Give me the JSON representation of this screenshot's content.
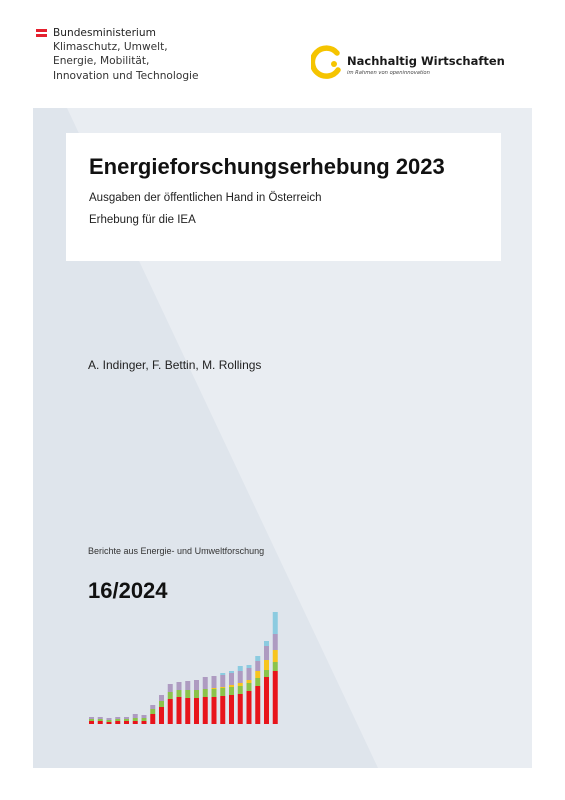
{
  "header": {
    "ministry_lines": [
      "Bundesministerium",
      "Klimaschutz, Umwelt,",
      "Energie, Mobilität,",
      "Innovation und Technologie"
    ],
    "flag_colors": [
      "#e5202e",
      "#ffffff",
      "#e5202e"
    ],
    "partner_logo": {
      "title": "Nachhaltig Wirtschaften",
      "subtitle": "im Rahmen von openinnovation",
      "accent": "#f5c400"
    }
  },
  "cover": {
    "title": "Energieforschungserhebung 2023",
    "subtitle_1": "Ausgaben der öffentlichen Hand in Österreich",
    "subtitle_2": "Erhebung für die IEA",
    "authors": "A. Indinger, F. Bettin, M. Rollings",
    "series": "Berichte aus Energie- und Umweltforschung",
    "report_number": "16/2024",
    "background_color": "#dfe5ec"
  },
  "chart_data": {
    "type": "bar",
    "stacked": true,
    "colors": [
      "#e8141b",
      "#8bc34a",
      "#f7c51e",
      "#ae9bc1",
      "#8ccbe0"
    ],
    "series": [
      {
        "values": [
          3,
          3,
          2,
          3,
          3,
          3,
          3,
          10,
          17,
          25,
          27,
          26,
          26,
          27,
          27,
          28,
          29,
          30,
          33,
          38,
          47,
          53
        ]
      },
      {
        "values": [
          2,
          2,
          2,
          2,
          2,
          3,
          3,
          5,
          6,
          7,
          7,
          8,
          8,
          8,
          8,
          8,
          8,
          8,
          8,
          8,
          7,
          9
        ]
      },
      {
        "values": [
          0,
          0,
          0,
          0,
          0,
          0,
          0,
          0,
          0,
          0,
          0,
          0,
          0,
          0,
          1,
          1,
          2,
          3,
          3,
          7,
          10,
          12
        ]
      },
      {
        "values": [
          2,
          2,
          2,
          2,
          2,
          4,
          3,
          4,
          6,
          8,
          8,
          9,
          10,
          12,
          12,
          12,
          12,
          12,
          12,
          10,
          14,
          16
        ]
      },
      {
        "values": [
          0,
          0,
          0,
          0,
          0,
          0,
          0,
          0,
          0,
          0,
          0,
          0,
          0,
          0,
          0,
          2,
          2,
          5,
          3,
          5,
          5,
          22
        ]
      }
    ]
  }
}
